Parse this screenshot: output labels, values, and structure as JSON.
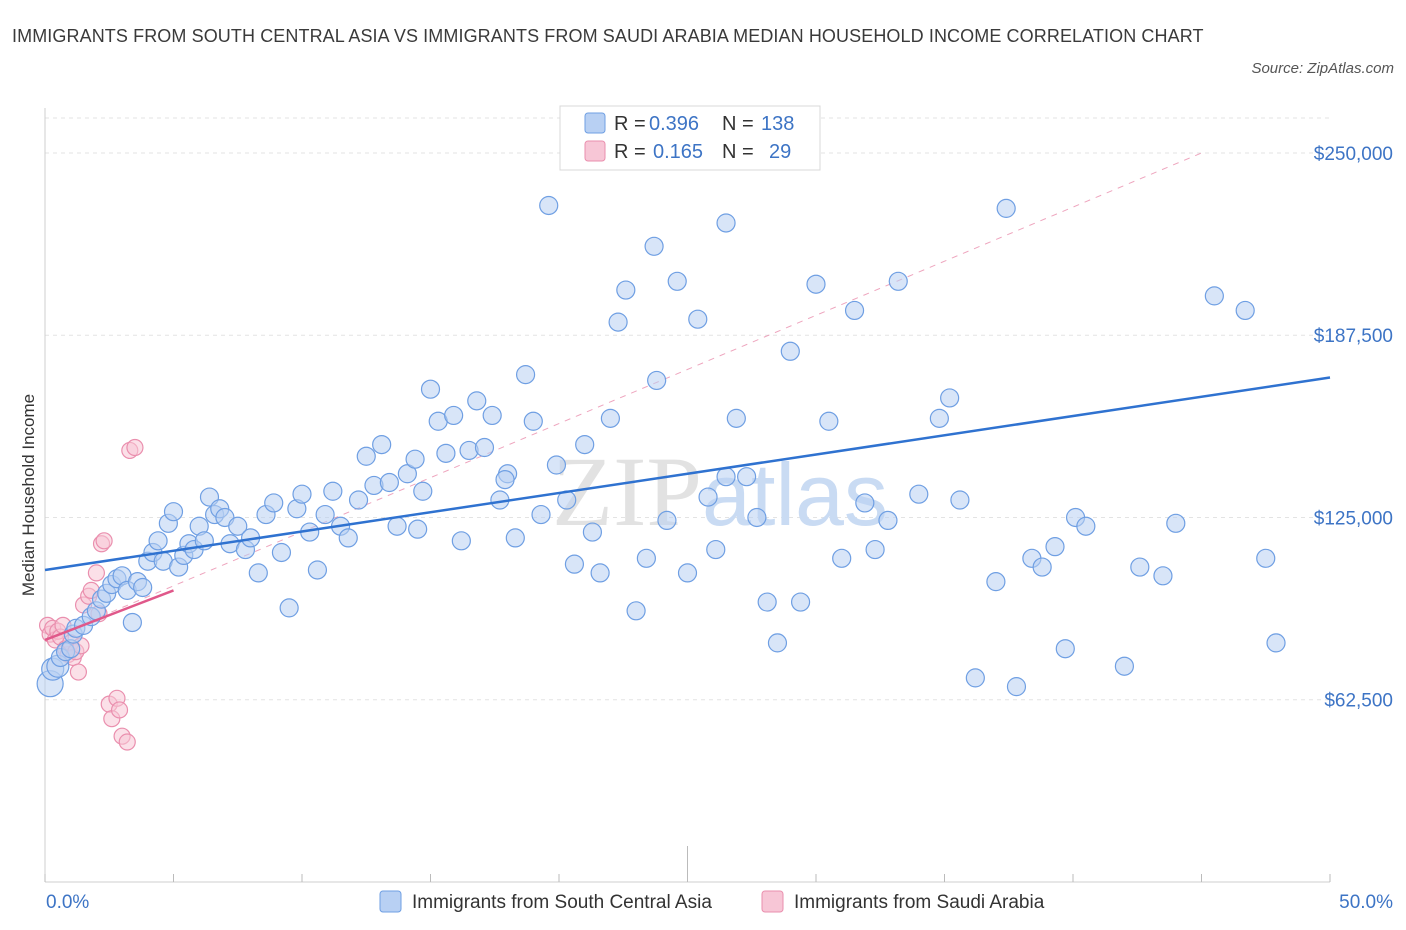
{
  "title": "IMMIGRANTS FROM SOUTH CENTRAL ASIA VS IMMIGRANTS FROM SAUDI ARABIA MEDIAN HOUSEHOLD INCOME CORRELATION CHART",
  "source": "Source: ZipAtlas.com",
  "watermark": "ZIPatlas",
  "legend_top": {
    "r_label": "R =",
    "n_label": "N =",
    "rows": [
      {
        "r": "0.396",
        "n": "138"
      },
      {
        "r": "0.165",
        "n": "29"
      }
    ]
  },
  "colors": {
    "blue": "#6f9fe3",
    "blue_fill": "#b8d0f3",
    "blue_line": "#2f72d0",
    "pink": "#ea8fae",
    "pink_fill": "#f7c6d6",
    "pink_line": "#e0588a",
    "tick_label": "#3d74c5",
    "grid": "#e3e3e3"
  },
  "chart_data": {
    "type": "scatter",
    "title": "IMMIGRANTS FROM SOUTH CENTRAL ASIA VS IMMIGRANTS FROM SAUDI ARABIA MEDIAN HOUSEHOLD INCOME CORRELATION CHART",
    "xlabel": "",
    "ylabel": "Median Household Income",
    "xlim": [
      0,
      50
    ],
    "ylim": [
      0,
      262000
    ],
    "x_tick_labels": [
      "0.0%",
      "50.0%"
    ],
    "y_ticks": [
      62500,
      125000,
      187500,
      250000
    ],
    "y_tick_labels": [
      "$62,500",
      "$125,000",
      "$187,500",
      "$250,000"
    ],
    "grid": true,
    "legend_position": "top-center",
    "series": [
      {
        "name": "Immigrants from South Central Asia",
        "color": "#6f9fe3",
        "R": 0.396,
        "N": 138,
        "trend": {
          "x": [
            0,
            50
          ],
          "y": [
            107000,
            173000
          ],
          "style": "solid"
        },
        "points": [
          [
            0.2,
            68000
          ],
          [
            0.3,
            73000
          ],
          [
            0.5,
            74000
          ],
          [
            0.6,
            77000
          ],
          [
            0.8,
            79000
          ],
          [
            1.0,
            80000
          ],
          [
            1.1,
            85000
          ],
          [
            1.2,
            87000
          ],
          [
            1.5,
            88000
          ],
          [
            1.8,
            91000
          ],
          [
            2.0,
            93000
          ],
          [
            2.2,
            97000
          ],
          [
            2.4,
            99000
          ],
          [
            2.6,
            102000
          ],
          [
            2.8,
            104000
          ],
          [
            3.0,
            105000
          ],
          [
            3.2,
            100000
          ],
          [
            3.4,
            89000
          ],
          [
            3.6,
            103000
          ],
          [
            3.8,
            101000
          ],
          [
            4.0,
            110000
          ],
          [
            4.2,
            113000
          ],
          [
            4.4,
            117000
          ],
          [
            4.6,
            110000
          ],
          [
            4.8,
            123000
          ],
          [
            5.0,
            127000
          ],
          [
            5.2,
            108000
          ],
          [
            5.4,
            112000
          ],
          [
            5.6,
            116000
          ],
          [
            5.8,
            114000
          ],
          [
            6.0,
            122000
          ],
          [
            6.2,
            117000
          ],
          [
            6.4,
            132000
          ],
          [
            6.6,
            126000
          ],
          [
            6.8,
            128000
          ],
          [
            7.0,
            125000
          ],
          [
            7.2,
            116000
          ],
          [
            7.5,
            122000
          ],
          [
            7.8,
            114000
          ],
          [
            8.0,
            118000
          ],
          [
            8.3,
            106000
          ],
          [
            8.6,
            126000
          ],
          [
            8.9,
            130000
          ],
          [
            9.2,
            113000
          ],
          [
            9.5,
            94000
          ],
          [
            9.8,
            128000
          ],
          [
            10.0,
            133000
          ],
          [
            10.3,
            120000
          ],
          [
            10.6,
            107000
          ],
          [
            10.9,
            126000
          ],
          [
            11.2,
            134000
          ],
          [
            11.5,
            122000
          ],
          [
            11.8,
            118000
          ],
          [
            12.2,
            131000
          ],
          [
            12.5,
            146000
          ],
          [
            12.8,
            136000
          ],
          [
            13.1,
            150000
          ],
          [
            13.4,
            137000
          ],
          [
            13.7,
            122000
          ],
          [
            14.1,
            140000
          ],
          [
            14.4,
            145000
          ],
          [
            14.7,
            134000
          ],
          [
            15.0,
            169000
          ],
          [
            15.3,
            158000
          ],
          [
            15.6,
            147000
          ],
          [
            15.9,
            160000
          ],
          [
            16.2,
            117000
          ],
          [
            16.5,
            148000
          ],
          [
            16.8,
            165000
          ],
          [
            17.1,
            149000
          ],
          [
            17.4,
            160000
          ],
          [
            17.7,
            131000
          ],
          [
            18.0,
            140000
          ],
          [
            18.3,
            118000
          ],
          [
            18.7,
            174000
          ],
          [
            19.0,
            158000
          ],
          [
            19.3,
            126000
          ],
          [
            19.6,
            232000
          ],
          [
            19.9,
            143000
          ],
          [
            20.3,
            131000
          ],
          [
            20.6,
            109000
          ],
          [
            21.0,
            150000
          ],
          [
            21.3,
            120000
          ],
          [
            21.6,
            106000
          ],
          [
            22.0,
            159000
          ],
          [
            22.3,
            192000
          ],
          [
            22.6,
            203000
          ],
          [
            23.0,
            93000
          ],
          [
            23.4,
            111000
          ],
          [
            23.8,
            172000
          ],
          [
            24.2,
            124000
          ],
          [
            24.6,
            206000
          ],
          [
            25.0,
            106000
          ],
          [
            25.4,
            193000
          ],
          [
            25.8,
            132000
          ],
          [
            26.1,
            114000
          ],
          [
            26.5,
            139000
          ],
          [
            26.9,
            159000
          ],
          [
            27.3,
            139000
          ],
          [
            27.7,
            125000
          ],
          [
            28.1,
            96000
          ],
          [
            28.5,
            82000
          ],
          [
            29.0,
            182000
          ],
          [
            29.4,
            96000
          ],
          [
            30.0,
            205000
          ],
          [
            30.5,
            158000
          ],
          [
            31.0,
            111000
          ],
          [
            31.5,
            196000
          ],
          [
            31.9,
            130000
          ],
          [
            32.3,
            114000
          ],
          [
            32.8,
            124000
          ],
          [
            33.2,
            206000
          ],
          [
            34.0,
            133000
          ],
          [
            34.8,
            159000
          ],
          [
            35.2,
            166000
          ],
          [
            35.6,
            131000
          ],
          [
            36.2,
            70000
          ],
          [
            37.0,
            103000
          ],
          [
            37.8,
            67000
          ],
          [
            38.4,
            111000
          ],
          [
            38.8,
            108000
          ],
          [
            39.3,
            115000
          ],
          [
            39.7,
            80000
          ],
          [
            40.1,
            125000
          ],
          [
            40.5,
            122000
          ],
          [
            42.0,
            74000
          ],
          [
            42.6,
            108000
          ],
          [
            43.5,
            105000
          ],
          [
            44.0,
            123000
          ],
          [
            45.5,
            201000
          ],
          [
            46.7,
            196000
          ],
          [
            47.5,
            111000
          ],
          [
            47.9,
            82000
          ],
          [
            23.7,
            218000
          ],
          [
            26.5,
            226000
          ],
          [
            37.4,
            231000
          ],
          [
            14.5,
            121000
          ],
          [
            17.9,
            138000
          ]
        ]
      },
      {
        "name": "Immigrants from Saudi Arabia",
        "color": "#ea8fae",
        "R": 0.165,
        "N": 29,
        "trend": {
          "x": [
            0,
            5
          ],
          "y": [
            83000,
            100000
          ],
          "style": "solid"
        },
        "trend_extended": {
          "x": [
            0,
            45
          ],
          "y": [
            83000,
            250000
          ],
          "style": "dashed"
        },
        "points": [
          [
            0.1,
            88000
          ],
          [
            0.2,
            85000
          ],
          [
            0.3,
            87000
          ],
          [
            0.4,
            83000
          ],
          [
            0.5,
            86000
          ],
          [
            0.6,
            84000
          ],
          [
            0.7,
            88000
          ],
          [
            0.8,
            80000
          ],
          [
            0.9,
            78000
          ],
          [
            1.0,
            82000
          ],
          [
            1.1,
            77000
          ],
          [
            1.2,
            79000
          ],
          [
            1.3,
            72000
          ],
          [
            1.4,
            81000
          ],
          [
            1.5,
            95000
          ],
          [
            1.7,
            98000
          ],
          [
            1.8,
            100000
          ],
          [
            2.0,
            106000
          ],
          [
            2.1,
            92000
          ],
          [
            2.2,
            116000
          ],
          [
            2.3,
            117000
          ],
          [
            2.5,
            61000
          ],
          [
            2.6,
            56000
          ],
          [
            2.8,
            63000
          ],
          [
            2.9,
            59000
          ],
          [
            3.0,
            50000
          ],
          [
            3.2,
            48000
          ],
          [
            3.3,
            148000
          ],
          [
            3.5,
            149000
          ]
        ]
      }
    ]
  },
  "bottom_legend": [
    "Immigrants from South Central Asia",
    "Immigrants from Saudi Arabia"
  ]
}
